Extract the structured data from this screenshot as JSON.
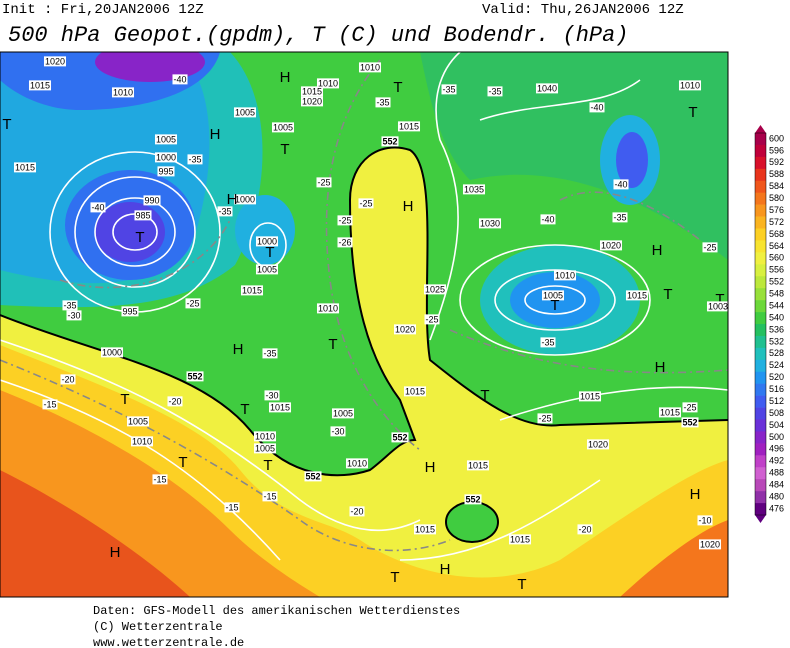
{
  "header": {
    "init": "Init : Fri,20JAN2006 12Z",
    "valid": "Valid: Thu,26JAN2006 12Z",
    "title": "500 hPa Geopot.(gpdm), T (C) und Bodendr. (hPa)"
  },
  "colorbar": {
    "values": [
      600,
      596,
      592,
      588,
      584,
      580,
      576,
      572,
      568,
      564,
      560,
      556,
      552,
      548,
      544,
      540,
      536,
      532,
      528,
      524,
      520,
      516,
      512,
      508,
      504,
      500,
      496,
      492,
      488,
      484,
      480,
      476
    ],
    "colors": [
      "#a8004a",
      "#c0003a",
      "#d8102a",
      "#e8341c",
      "#f0561c",
      "#f4761c",
      "#f8961e",
      "#fab420",
      "#fcd024",
      "#f8e430",
      "#f0f040",
      "#d8f040",
      "#bce83c",
      "#98e03a",
      "#6cd83a",
      "#40cc40",
      "#24c060",
      "#20c090",
      "#20c0bc",
      "#20b0e0",
      "#2094f0",
      "#3078f0",
      "#405cf0",
      "#5044e4",
      "#6a30d8",
      "#8824c8",
      "#a020c0",
      "#c040c8",
      "#d060d0",
      "#b848b8",
      "#9030a8",
      "#600080"
    ]
  },
  "map": {
    "labels": [
      "1020",
      "1015",
      "1010",
      "T",
      "1015",
      "1005",
      "1000",
      "995",
      "990",
      "985",
      "T",
      "-40",
      "-35",
      "-40",
      "H",
      "1005",
      "H",
      "1010",
      "1015",
      "1020",
      "1005",
      "T",
      "1010",
      "T",
      "1015",
      "-35",
      "-35",
      "-35",
      "1040",
      "-40",
      "1010",
      "T",
      "-40",
      "-35",
      "H",
      "1035",
      "1030",
      "-40",
      "1020",
      "H",
      "-25",
      "1010",
      "1005",
      "T",
      "1015",
      "T",
      "-35",
      "1025",
      "-25",
      "1020",
      "-25",
      "-25",
      "-26",
      "-25",
      "-25",
      "-35",
      "1000",
      "H",
      "1000",
      "T",
      "1005",
      "1015",
      "-35",
      "-30",
      "995",
      "1000",
      "H",
      "-35",
      "T",
      "1010",
      "552",
      "552",
      "552",
      "552",
      "552",
      "552",
      "-20",
      "-15",
      "T",
      "1005",
      "1010",
      "-20",
      "-30",
      "1015",
      "T",
      "1005",
      "-30",
      "1010",
      "1005",
      "T",
      "1010",
      "-15",
      "-15",
      "T",
      "-15",
      "-20",
      "1015",
      "T",
      "-25",
      "1015",
      "H",
      "1015",
      "-25",
      "1020",
      "H",
      "1015",
      "1015",
      "1015",
      "-20",
      "H",
      "-10",
      "1020",
      "H",
      "T",
      "H",
      "T",
      "T",
      "1003"
    ]
  },
  "footer": [
    "Daten: GFS-Modell des amerikanischen Wetterdienstes",
    "(C) Wetterzentrale",
    "www.wetterzentrale.de"
  ]
}
